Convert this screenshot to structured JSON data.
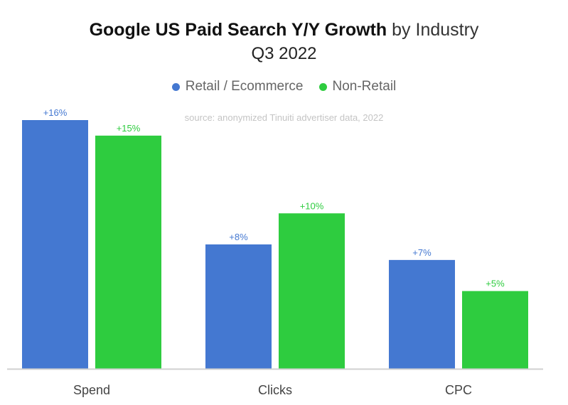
{
  "title_bold": "Google US Paid Search Y/Y Growth",
  "title_rest": "by Industry",
  "subtitle": "Q3 2022",
  "source": "source: anonymized Tinuiti advertiser data, 2022",
  "colors": {
    "retail": "#4478d1",
    "nonretail": "#2ecc3f",
    "axis": "#d0d0d0",
    "category_text": "#444444"
  },
  "chart_data": {
    "type": "bar",
    "categories": [
      "Spend",
      "Clicks",
      "CPC"
    ],
    "series": [
      {
        "name": "Retail / Ecommerce",
        "values": [
          16,
          8,
          7
        ],
        "labels": [
          "+16%",
          "+8%",
          "+7%"
        ]
      },
      {
        "name": "Non-Retail",
        "values": [
          15,
          10,
          5
        ],
        "labels": [
          "+15%",
          "+10%",
          "+5%"
        ]
      }
    ],
    "ylim": [
      0,
      16
    ],
    "legend": "top-center",
    "grid": false
  }
}
